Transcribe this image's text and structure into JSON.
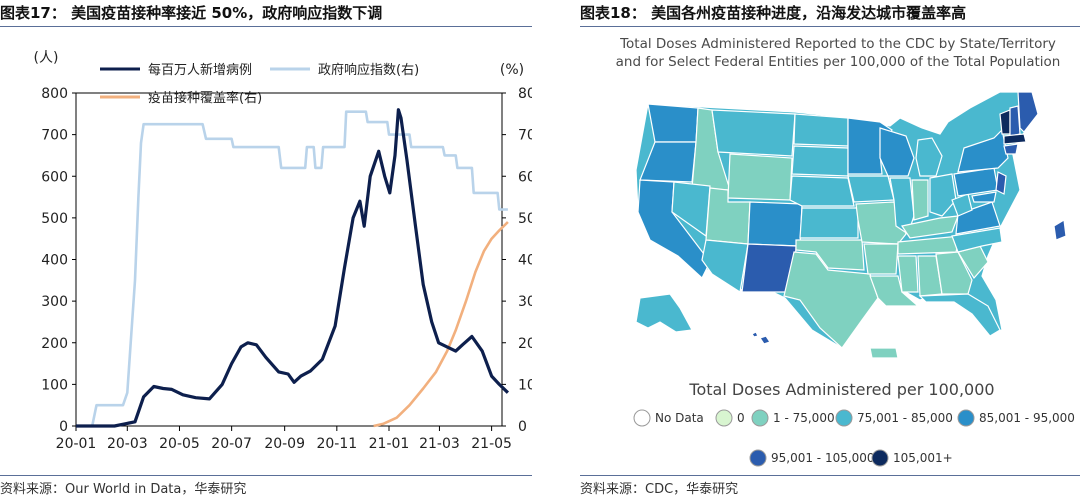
{
  "left": {
    "figure_title": "图表17：  美国疫苗接种率接近 50%，政府响应指数下调",
    "source": "资料来源：Our World in Data，华泰研究",
    "chart_data": {
      "type": "line",
      "x_ticks": [
        "20-01",
        "20-03",
        "20-05",
        "20-07",
        "20-09",
        "20-11",
        "21-01",
        "21-03",
        "21-05"
      ],
      "y_left": {
        "unit": "(人)",
        "ticks": [
          0,
          100,
          200,
          300,
          400,
          500,
          600,
          700,
          800
        ],
        "range": [
          0,
          800
        ]
      },
      "y_right": {
        "unit": "(%)",
        "ticks": [
          0,
          10,
          20,
          30,
          40,
          50,
          60,
          70,
          80
        ],
        "range": [
          0,
          80
        ]
      },
      "series": [
        {
          "name": "每百万人新增病例",
          "axis": "left",
          "color": "#0d1f4d",
          "points": [
            [
              "2020-01-01",
              0
            ],
            [
              "2020-02-15",
              0
            ],
            [
              "2020-03-10",
              10
            ],
            [
              "2020-03-20",
              70
            ],
            [
              "2020-04-01",
              95
            ],
            [
              "2020-04-12",
              90
            ],
            [
              "2020-04-22",
              88
            ],
            [
              "2020-05-05",
              75
            ],
            [
              "2020-05-20",
              68
            ],
            [
              "2020-06-05",
              65
            ],
            [
              "2020-06-20",
              100
            ],
            [
              "2020-07-01",
              150
            ],
            [
              "2020-07-12",
              190
            ],
            [
              "2020-07-20",
              200
            ],
            [
              "2020-07-30",
              195
            ],
            [
              "2020-08-10",
              165
            ],
            [
              "2020-08-25",
              130
            ],
            [
              "2020-09-05",
              125
            ],
            [
              "2020-09-12",
              105
            ],
            [
              "2020-09-20",
              120
            ],
            [
              "2020-10-01",
              132
            ],
            [
              "2020-10-15",
              160
            ],
            [
              "2020-10-30",
              240
            ],
            [
              "2020-11-10",
              380
            ],
            [
              "2020-11-20",
              500
            ],
            [
              "2020-11-28",
              540
            ],
            [
              "2020-12-03",
              480
            ],
            [
              "2020-12-10",
              600
            ],
            [
              "2020-12-20",
              660
            ],
            [
              "2020-12-27",
              600
            ],
            [
              "2021-01-02",
              560
            ],
            [
              "2021-01-08",
              650
            ],
            [
              "2021-01-12",
              760
            ],
            [
              "2021-01-15",
              740
            ],
            [
              "2021-01-22",
              640
            ],
            [
              "2021-02-01",
              480
            ],
            [
              "2021-02-10",
              340
            ],
            [
              "2021-02-20",
              250
            ],
            [
              "2021-02-28",
              200
            ],
            [
              "2021-03-10",
              190
            ],
            [
              "2021-03-20",
              180
            ],
            [
              "2021-03-28",
              195
            ],
            [
              "2021-04-08",
              215
            ],
            [
              "2021-04-20",
              180
            ],
            [
              "2021-05-01",
              120
            ],
            [
              "2021-05-10",
              100
            ],
            [
              "2021-05-20",
              80
            ]
          ]
        },
        {
          "name": "政府响应指数(右)",
          "axis": "right",
          "color": "#b9d3ea",
          "points": [
            [
              "2020-01-01",
              0
            ],
            [
              "2020-01-20",
              0
            ],
            [
              "2020-01-25",
              5
            ],
            [
              "2020-02-25",
              5
            ],
            [
              "2020-03-01",
              8
            ],
            [
              "2020-03-05",
              20
            ],
            [
              "2020-03-10",
              35
            ],
            [
              "2020-03-14",
              55
            ],
            [
              "2020-03-17",
              68
            ],
            [
              "2020-03-20",
              72.5
            ],
            [
              "2020-05-28",
              72.5
            ],
            [
              "2020-06-01",
              69
            ],
            [
              "2020-07-01",
              69
            ],
            [
              "2020-07-03",
              67
            ],
            [
              "2020-08-25",
              67
            ],
            [
              "2020-08-28",
              62
            ],
            [
              "2020-09-25",
              62
            ],
            [
              "2020-09-27",
              67
            ],
            [
              "2020-10-05",
              67
            ],
            [
              "2020-10-07",
              62
            ],
            [
              "2020-10-14",
              62
            ],
            [
              "2020-10-16",
              67
            ],
            [
              "2020-11-10",
              67
            ],
            [
              "2020-11-12",
              75.5
            ],
            [
              "2020-12-05",
              75.5
            ],
            [
              "2020-12-07",
              73
            ],
            [
              "2020-12-30",
              73
            ],
            [
              "2021-01-01",
              70
            ],
            [
              "2021-01-25",
              70
            ],
            [
              "2021-01-27",
              67
            ],
            [
              "2021-03-05",
              67
            ],
            [
              "2021-03-07",
              65
            ],
            [
              "2021-03-20",
              65
            ],
            [
              "2021-03-22",
              62
            ],
            [
              "2021-04-08",
              62
            ],
            [
              "2021-04-10",
              56
            ],
            [
              "2021-05-08",
              56
            ],
            [
              "2021-05-10",
              52
            ],
            [
              "2021-05-20",
              52
            ]
          ]
        },
        {
          "name": "疫苗接种覆盖率(右)",
          "axis": "right",
          "color": "#f2b07e",
          "points": [
            [
              "2020-12-14",
              0
            ],
            [
              "2020-12-25",
              0.5
            ],
            [
              "2021-01-10",
              2
            ],
            [
              "2021-01-25",
              5
            ],
            [
              "2021-02-10",
              9
            ],
            [
              "2021-02-25",
              13
            ],
            [
              "2021-03-10",
              18
            ],
            [
              "2021-03-20",
              23
            ],
            [
              "2021-04-01",
              30
            ],
            [
              "2021-04-12",
              37
            ],
            [
              "2021-04-22",
              42
            ],
            [
              "2021-05-01",
              45
            ],
            [
              "2021-05-10",
              47
            ],
            [
              "2021-05-20",
              49
            ]
          ]
        }
      ]
    }
  },
  "right": {
    "figure_title": "图表18：  美国各州疫苗接种进度，沿海发达城市覆盖率高",
    "source": "资料来源：CDC，华泰研究",
    "map": {
      "title_line1": "Total Doses Administered Reported to the CDC by State/Territory",
      "title_line2": "and for Select Federal Entities per 100,000 of the Total Population",
      "legend_title": "Total Doses Administered per 100,000",
      "legend": [
        {
          "label": "No Data",
          "color": "#ffffff"
        },
        {
          "label": "0",
          "color": "#d8f5d0"
        },
        {
          "label": "1 - 75,000",
          "color": "#7fd1c0"
        },
        {
          "label": "75,001 - 85,000",
          "color": "#4ab8cf"
        },
        {
          "label": "85,001 - 95,000",
          "color": "#2a8fc9"
        },
        {
          "label": "95,001 - 105,000",
          "color": "#2b5cae"
        },
        {
          "label": "105,001+",
          "color": "#0d2a5e"
        }
      ]
    }
  }
}
